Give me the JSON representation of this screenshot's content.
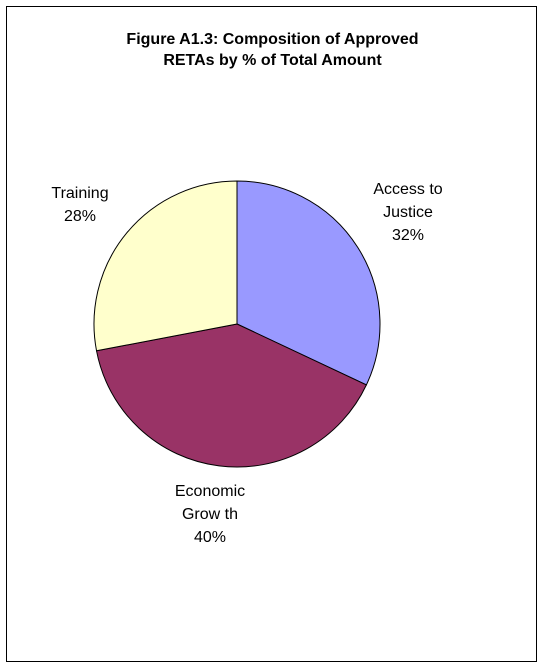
{
  "chart_data": {
    "type": "pie",
    "title": "Figure A1.3: Composition of Approved RETAs by % of Total Amount",
    "title_lines": [
      "Figure A1.3: Composition of Approved",
      "RETAs by % of Total Amount"
    ],
    "slices": [
      {
        "label_lines": [
          "Access to",
          "Justice"
        ],
        "label": "Access to Justice",
        "value": 32,
        "value_label": "32%",
        "color": "#9999ff"
      },
      {
        "label_lines": [
          "Economic",
          "Grow th"
        ],
        "label": "Economic Growth",
        "value": 40,
        "value_label": "40%",
        "color": "#993366"
      },
      {
        "label_lines": [
          "Training"
        ],
        "label": "Training",
        "value": 28,
        "value_label": "28%",
        "color": "#ffffcc"
      }
    ]
  }
}
